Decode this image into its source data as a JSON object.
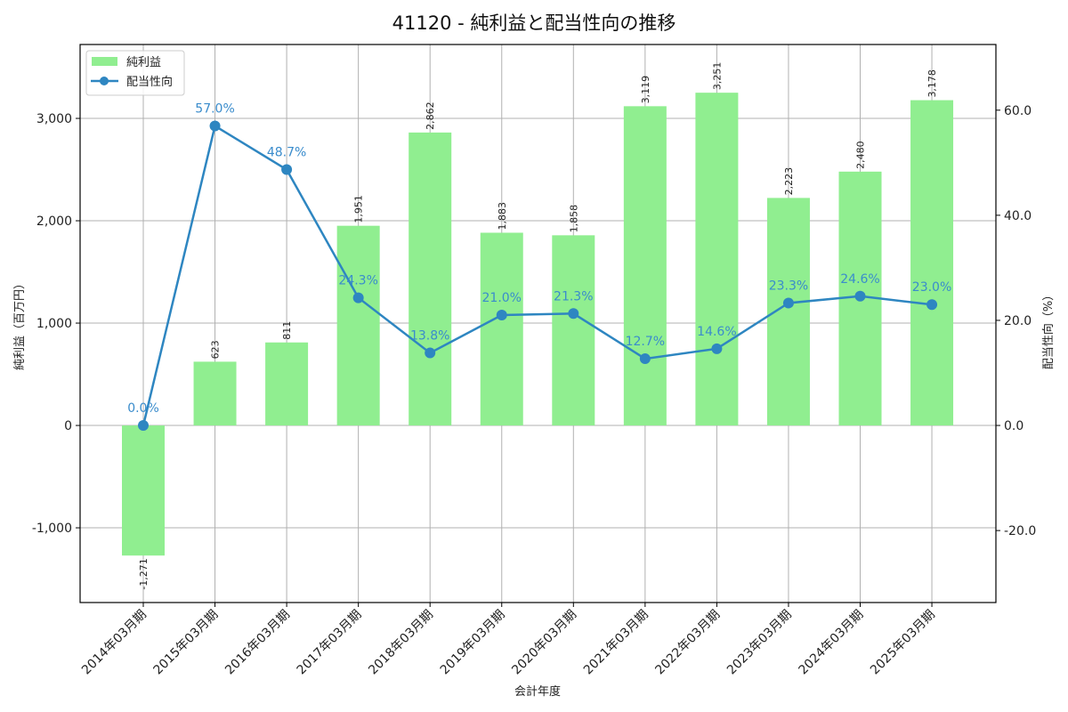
{
  "title": "41120 - 純利益と配当性向の推移",
  "chart_data": {
    "type": "bar+line",
    "title": "41120 - 純利益と配当性向の推移",
    "xlabel": "会計年度",
    "ylabel": "純利益（百万円）",
    "y2label": "配当性向（%）",
    "categories": [
      "2014年03月期",
      "2015年03月期",
      "2016年03月期",
      "2017年03月期",
      "2018年03月期",
      "2019年03月期",
      "2020年03月期",
      "2021年03月期",
      "2022年03月期",
      "2023年03月期",
      "2024年03月期",
      "2025年03月期"
    ],
    "series": [
      {
        "name": "純利益",
        "type": "bar",
        "axis": "left",
        "color": "#90ee90",
        "values": [
          -1271,
          623,
          811,
          1951,
          2862,
          1883,
          1858,
          3119,
          3251,
          2223,
          2480,
          3178
        ],
        "labels": [
          "-1,271",
          "623",
          "811",
          "1,951",
          "2,862",
          "1,883",
          "1,858",
          "3,119",
          "3,251",
          "2,223",
          "2,480",
          "3,178"
        ]
      },
      {
        "name": "配当性向",
        "type": "line",
        "axis": "right",
        "color": "#2e86c1",
        "values": [
          0.0,
          57.0,
          48.7,
          24.3,
          13.8,
          21.0,
          21.3,
          12.7,
          14.6,
          23.3,
          24.6,
          23.0
        ],
        "labels": [
          "0.0%",
          "57.0%",
          "48.7%",
          "24.3%",
          "13.8%",
          "21.0%",
          "21.3%",
          "12.7%",
          "14.6%",
          "23.3%",
          "24.6%",
          "23.0%"
        ]
      }
    ],
    "ylim": [
      -1730,
      3722
    ],
    "y2lim": [
      -33.7,
      72.5
    ],
    "yticks": [
      -1000,
      0,
      1000,
      2000,
      3000
    ],
    "ytick_labels": [
      "-1,000",
      "0",
      "1,000",
      "2,000",
      "3,000"
    ],
    "y2ticks": [
      -20,
      0,
      20,
      40,
      60
    ],
    "y2tick_labels": [
      "-20.0",
      "0.0",
      "20.0",
      "40.0",
      "60.0"
    ],
    "grid": true,
    "legend_position": "upper left"
  },
  "legend": [
    {
      "label": "純利益"
    },
    {
      "label": "配当性向"
    }
  ]
}
